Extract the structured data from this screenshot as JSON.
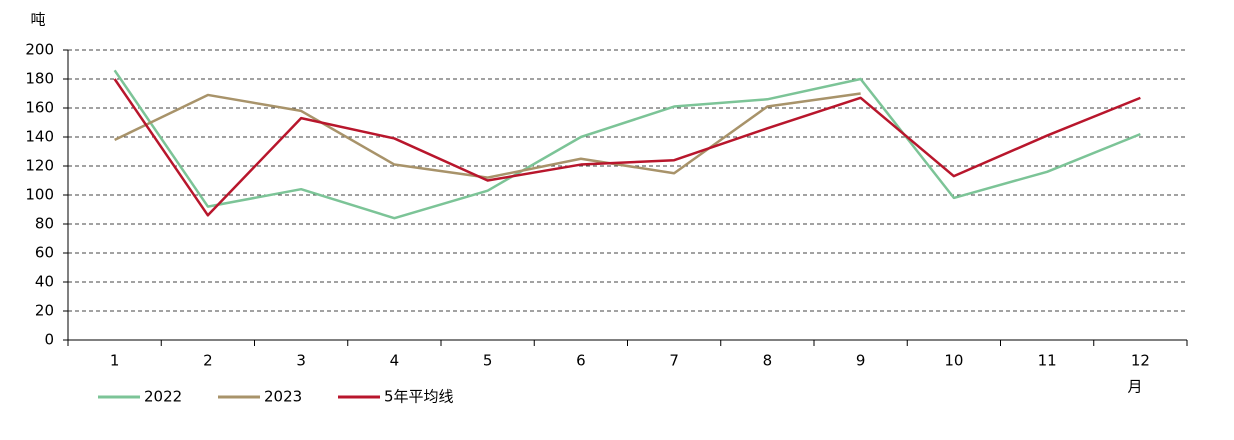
{
  "chart_data": {
    "type": "line",
    "y_label": "吨",
    "x_label": "月",
    "categories": [
      "1",
      "2",
      "3",
      "4",
      "5",
      "6",
      "7",
      "8",
      "9",
      "10",
      "11",
      "12"
    ],
    "series": [
      {
        "name": "2022",
        "color": "#7cc497",
        "values": [
          186,
          92,
          104,
          84,
          103,
          140,
          161,
          166,
          180,
          98,
          116,
          142
        ]
      },
      {
        "name": "2023",
        "color": "#a8936a",
        "values": [
          138,
          169,
          158,
          121,
          112,
          125,
          115,
          161,
          170,
          null,
          null,
          null
        ]
      },
      {
        "name": "5年平均线",
        "color": "#b8162c",
        "values": [
          180,
          86,
          153,
          139,
          110,
          121,
          124,
          146,
          167,
          113,
          141,
          167
        ]
      }
    ],
    "ylim": [
      0,
      200
    ],
    "yticks": [
      0,
      20,
      40,
      60,
      80,
      100,
      120,
      140,
      160,
      180,
      200
    ],
    "grid": true,
    "legend": "bottom-left"
  }
}
